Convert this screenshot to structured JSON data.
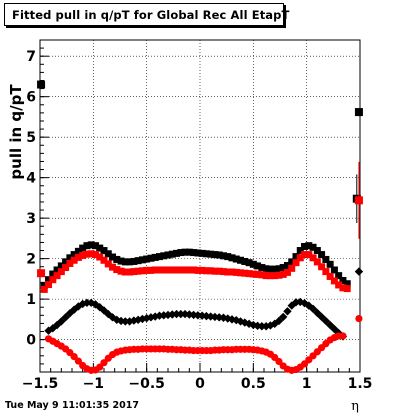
{
  "title": "Fitted pull in q/pT for Global Rec All EtapT",
  "datestamp": "Tue May  9 11:01:35 2017",
  "chart_data": {
    "type": "scatter",
    "xlabel": "η",
    "ylabel": "pull in q/pT",
    "xlim": [
      -1.5,
      1.5
    ],
    "ylim": [
      -0.8,
      7.4
    ],
    "grid": true,
    "x_ticks": [
      "−1.5",
      "−1",
      "−0.5",
      "0",
      "0.5",
      "1",
      "1.5"
    ],
    "x_tick_values": [
      -1.5,
      -1,
      -0.5,
      0,
      0.5,
      1,
      1.5
    ],
    "y_ticks": [
      "0",
      "1",
      "2",
      "3",
      "4",
      "5",
      "6",
      "7"
    ],
    "y_tick_values": [
      0,
      1,
      2,
      3,
      4,
      5,
      6,
      7
    ],
    "colors": {
      "black": "#000000",
      "red": "#ff0000"
    },
    "series": [
      {
        "color": "#000000",
        "marker": "square",
        "x": [
          -1.46,
          -1.42,
          -1.38,
          -1.34,
          -1.3,
          -1.26,
          -1.22,
          -1.18,
          -1.14,
          -1.1,
          -1.06,
          -1.02,
          -0.98,
          -0.94,
          -0.9,
          -0.86,
          -0.82,
          -0.78,
          -0.74,
          -0.7,
          -0.66,
          -0.62,
          -0.58,
          -0.54,
          -0.5,
          -0.46,
          -0.42,
          -0.38,
          -0.34,
          -0.3,
          -0.26,
          -0.22,
          -0.18,
          -0.14,
          -0.1,
          -0.06,
          -0.02,
          0.02,
          0.06,
          0.1,
          0.14,
          0.18,
          0.22,
          0.26,
          0.3,
          0.34,
          0.38,
          0.42,
          0.46,
          0.5,
          0.54,
          0.58,
          0.62,
          0.66,
          0.7,
          0.74,
          0.78,
          0.82,
          0.86,
          0.9,
          0.94,
          0.98,
          1.02,
          1.06,
          1.1,
          1.14,
          1.18,
          1.22,
          1.26,
          1.3,
          1.34,
          1.38
        ],
        "y": [
          1.34,
          1.48,
          1.62,
          1.72,
          1.82,
          1.92,
          2.02,
          2.1,
          2.18,
          2.26,
          2.32,
          2.34,
          2.32,
          2.26,
          2.2,
          2.12,
          2.04,
          1.98,
          1.94,
          1.92,
          1.92,
          1.93,
          1.95,
          1.97,
          1.99,
          2.01,
          2.03,
          2.05,
          2.07,
          2.09,
          2.11,
          2.13,
          2.15,
          2.16,
          2.16,
          2.15,
          2.14,
          2.13,
          2.12,
          2.11,
          2.1,
          2.09,
          2.07,
          2.05,
          2.02,
          1.99,
          1.96,
          1.93,
          1.9,
          1.86,
          1.82,
          1.78,
          1.75,
          1.74,
          1.74,
          1.75,
          1.78,
          1.83,
          1.92,
          2.05,
          2.2,
          2.3,
          2.32,
          2.28,
          2.2,
          2.1,
          1.98,
          1.86,
          1.72,
          1.58,
          1.46,
          1.38
        ]
      },
      {
        "color": "#ff0000",
        "marker": "square",
        "x": [
          -1.46,
          -1.42,
          -1.38,
          -1.34,
          -1.3,
          -1.26,
          -1.22,
          -1.18,
          -1.14,
          -1.1,
          -1.06,
          -1.02,
          -0.98,
          -0.94,
          -0.9,
          -0.86,
          -0.82,
          -0.78,
          -0.74,
          -0.7,
          -0.66,
          -0.62,
          -0.58,
          -0.54,
          -0.5,
          -0.46,
          -0.42,
          -0.38,
          -0.34,
          -0.3,
          -0.26,
          -0.22,
          -0.18,
          -0.14,
          -0.1,
          -0.06,
          -0.02,
          0.02,
          0.06,
          0.1,
          0.14,
          0.18,
          0.22,
          0.26,
          0.3,
          0.34,
          0.38,
          0.42,
          0.46,
          0.5,
          0.54,
          0.58,
          0.62,
          0.66,
          0.7,
          0.74,
          0.78,
          0.82,
          0.86,
          0.9,
          0.94,
          0.98,
          1.02,
          1.06,
          1.1,
          1.14,
          1.18,
          1.22,
          1.26,
          1.3,
          1.34,
          1.38
        ],
        "y": [
          1.24,
          1.36,
          1.48,
          1.58,
          1.68,
          1.78,
          1.88,
          1.96,
          2.03,
          2.08,
          2.11,
          2.12,
          2.1,
          2.04,
          1.96,
          1.87,
          1.79,
          1.73,
          1.69,
          1.67,
          1.67,
          1.68,
          1.69,
          1.7,
          1.71,
          1.71,
          1.72,
          1.72,
          1.72,
          1.72,
          1.72,
          1.72,
          1.72,
          1.72,
          1.72,
          1.72,
          1.71,
          1.71,
          1.7,
          1.7,
          1.69,
          1.69,
          1.68,
          1.67,
          1.67,
          1.66,
          1.65,
          1.64,
          1.63,
          1.62,
          1.61,
          1.6,
          1.58,
          1.58,
          1.58,
          1.59,
          1.61,
          1.66,
          1.76,
          1.9,
          2.02,
          2.1,
          2.1,
          2.02,
          1.92,
          1.8,
          1.68,
          1.56,
          1.45,
          1.35,
          1.28,
          1.26
        ]
      },
      {
        "color": "#000000",
        "marker": "diamond",
        "x": [
          -1.42,
          -1.38,
          -1.34,
          -1.3,
          -1.26,
          -1.22,
          -1.18,
          -1.14,
          -1.1,
          -1.06,
          -1.02,
          -0.98,
          -0.94,
          -0.9,
          -0.86,
          -0.82,
          -0.78,
          -0.74,
          -0.7,
          -0.66,
          -0.62,
          -0.58,
          -0.54,
          -0.5,
          -0.46,
          -0.42,
          -0.38,
          -0.34,
          -0.3,
          -0.26,
          -0.22,
          -0.18,
          -0.14,
          -0.1,
          -0.06,
          -0.02,
          0.02,
          0.06,
          0.1,
          0.14,
          0.18,
          0.22,
          0.26,
          0.3,
          0.34,
          0.38,
          0.42,
          0.46,
          0.5,
          0.54,
          0.58,
          0.62,
          0.66,
          0.7,
          0.74,
          0.78,
          0.82,
          0.86,
          0.9,
          0.94,
          0.98,
          1.02,
          1.06,
          1.1,
          1.14,
          1.18,
          1.22,
          1.26,
          1.3,
          1.34
        ],
        "y": [
          0.22,
          0.28,
          0.36,
          0.45,
          0.55,
          0.65,
          0.74,
          0.82,
          0.88,
          0.91,
          0.91,
          0.87,
          0.8,
          0.72,
          0.63,
          0.55,
          0.49,
          0.46,
          0.45,
          0.45,
          0.47,
          0.49,
          0.51,
          0.53,
          0.55,
          0.57,
          0.59,
          0.6,
          0.61,
          0.62,
          0.63,
          0.63,
          0.63,
          0.62,
          0.61,
          0.6,
          0.59,
          0.58,
          0.57,
          0.56,
          0.55,
          0.54,
          0.52,
          0.5,
          0.48,
          0.45,
          0.42,
          0.39,
          0.36,
          0.34,
          0.33,
          0.33,
          0.35,
          0.39,
          0.46,
          0.56,
          0.7,
          0.84,
          0.92,
          0.93,
          0.9,
          0.84,
          0.76,
          0.66,
          0.56,
          0.46,
          0.36,
          0.26,
          0.16,
          0.08
        ]
      },
      {
        "color": "#ff0000",
        "marker": "circle",
        "x": [
          -1.42,
          -1.38,
          -1.34,
          -1.3,
          -1.26,
          -1.22,
          -1.18,
          -1.14,
          -1.1,
          -1.06,
          -1.02,
          -0.98,
          -0.94,
          -0.9,
          -0.86,
          -0.82,
          -0.78,
          -0.74,
          -0.7,
          -0.66,
          -0.62,
          -0.58,
          -0.54,
          -0.5,
          -0.46,
          -0.42,
          -0.38,
          -0.34,
          -0.3,
          -0.26,
          -0.22,
          -0.18,
          -0.14,
          -0.1,
          -0.06,
          -0.02,
          0.02,
          0.06,
          0.1,
          0.14,
          0.18,
          0.22,
          0.26,
          0.3,
          0.34,
          0.38,
          0.42,
          0.46,
          0.5,
          0.54,
          0.58,
          0.62,
          0.66,
          0.7,
          0.74,
          0.78,
          0.82,
          0.86,
          0.9,
          0.94,
          0.98,
          1.02,
          1.06,
          1.1,
          1.14,
          1.18,
          1.22,
          1.26,
          1.3,
          1.34
        ],
        "y": [
          0.02,
          -0.04,
          -0.1,
          -0.16,
          -0.23,
          -0.32,
          -0.42,
          -0.53,
          -0.64,
          -0.72,
          -0.76,
          -0.75,
          -0.68,
          -0.57,
          -0.46,
          -0.37,
          -0.31,
          -0.28,
          -0.26,
          -0.25,
          -0.24,
          -0.24,
          -0.23,
          -0.23,
          -0.23,
          -0.23,
          -0.23,
          -0.23,
          -0.24,
          -0.24,
          -0.25,
          -0.25,
          -0.26,
          -0.26,
          -0.27,
          -0.27,
          -0.27,
          -0.27,
          -0.27,
          -0.26,
          -0.26,
          -0.25,
          -0.25,
          -0.25,
          -0.24,
          -0.24,
          -0.24,
          -0.24,
          -0.25,
          -0.26,
          -0.28,
          -0.31,
          -0.36,
          -0.44,
          -0.54,
          -0.65,
          -0.73,
          -0.76,
          -0.74,
          -0.68,
          -0.6,
          -0.5,
          -0.4,
          -0.3,
          -0.2,
          -0.1,
          -0.01,
          0.05,
          0.09,
          0.09
        ]
      }
    ],
    "edge_points": [
      {
        "color": "#000000",
        "marker": "square",
        "x": -1.49,
        "y": 6.3
      },
      {
        "color": "#ff0000",
        "marker": "square",
        "x": -1.49,
        "y": 1.64
      },
      {
        "color": "#000000",
        "marker": "square",
        "x": 1.49,
        "y": 5.62,
        "err": 0.1
      },
      {
        "color": "#000000",
        "marker": "square",
        "x": 1.47,
        "y": 3.48,
        "err": 0.6
      },
      {
        "color": "#ff0000",
        "marker": "square",
        "x": 1.49,
        "y": 3.44,
        "err": 0.95
      },
      {
        "color": "#000000",
        "marker": "diamond",
        "x": 1.49,
        "y": 1.68
      },
      {
        "color": "#ff0000",
        "marker": "circle",
        "x": 1.49,
        "y": 0.52
      }
    ]
  }
}
